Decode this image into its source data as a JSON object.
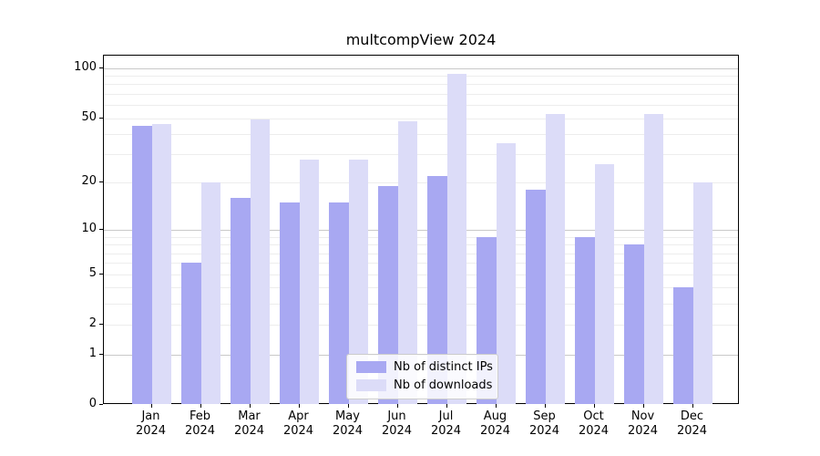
{
  "title": "multcompView 2024",
  "chart_data": {
    "type": "bar",
    "title": "multcompView 2024",
    "categories": [
      "Jan 2024",
      "Feb 2024",
      "Mar 2024",
      "Apr 2024",
      "May 2024",
      "Jun 2024",
      "Jul 2024",
      "Aug 2024",
      "Sep 2024",
      "Oct 2024",
      "Nov 2024",
      "Dec 2024"
    ],
    "series": [
      {
        "name": "Nb of distinct IPs",
        "color": "#a8a8f2",
        "values": [
          45,
          6,
          16,
          15,
          15,
          19,
          22,
          9,
          18,
          9,
          8,
          4
        ]
      },
      {
        "name": "Nb of downloads",
        "color": "#dcdcf8",
        "values": [
          46,
          20,
          49,
          28,
          28,
          48,
          93,
          35,
          53,
          26,
          53,
          20
        ]
      }
    ],
    "xlabel": "",
    "ylabel": "",
    "yscale": "log1p",
    "yticks": [
      100,
      50,
      20,
      10,
      5,
      2,
      1,
      0
    ],
    "ylim": [
      0,
      118
    ],
    "grid": true,
    "legend_position": "lower-center-inside",
    "grid_major_color": "#c9c9c9",
    "grid_minor_color": "#ededed"
  }
}
